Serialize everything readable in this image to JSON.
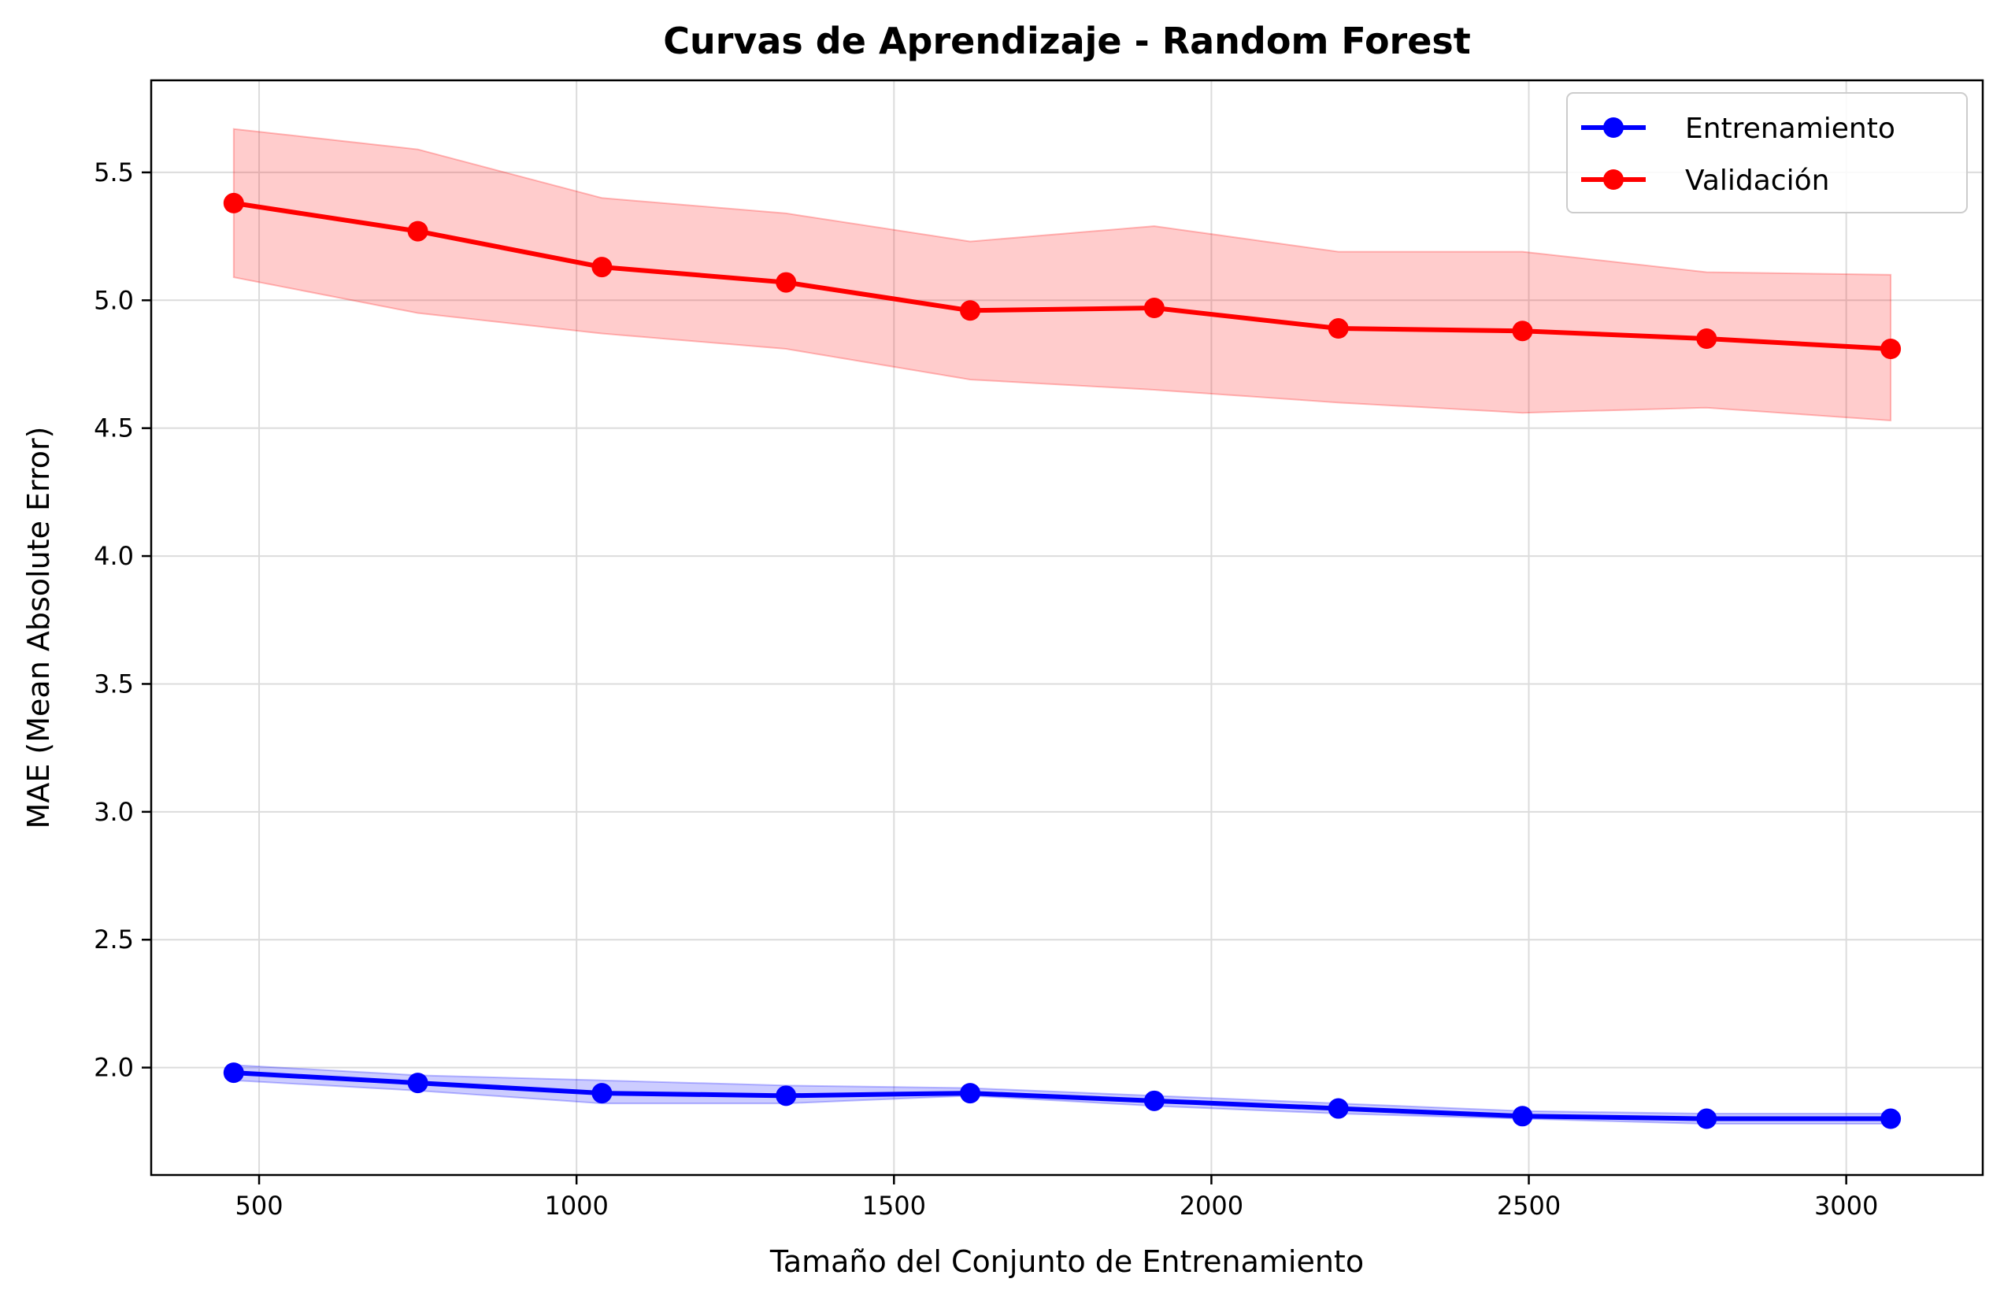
{
  "chart_data": {
    "type": "line",
    "title": "Curvas de Aprendizaje - Random Forest",
    "xlabel": "Tamaño del Conjunto de Entrenamiento",
    "ylabel": "MAE (Mean Absolute Error)",
    "xlim": [
      330,
      3215
    ],
    "ylim": [
      1.58,
      5.86
    ],
    "xticks": [
      500,
      1000,
      1500,
      2000,
      2500,
      3000
    ],
    "yticks": [
      2.0,
      2.5,
      3.0,
      3.5,
      4.0,
      4.5,
      5.0,
      5.5
    ],
    "xtick_labels": [
      "500",
      "1000",
      "1500",
      "2000",
      "2500",
      "3000"
    ],
    "ytick_labels": [
      "2.0",
      "2.5",
      "3.0",
      "3.5",
      "4.0",
      "4.5",
      "5.0",
      "5.5"
    ],
    "grid": true,
    "legend_position": "top-right",
    "x": [
      460,
      750,
      1040,
      1330,
      1620,
      1910,
      2200,
      2490,
      2780,
      3070
    ],
    "series": [
      {
        "name": "Entrenamiento",
        "color": "#0000ff",
        "band_color": "#0000ff",
        "values": [
          1.98,
          1.94,
          1.9,
          1.89,
          1.9,
          1.87,
          1.84,
          1.81,
          1.8,
          1.8
        ],
        "upper": [
          2.01,
          1.97,
          1.95,
          1.93,
          1.92,
          1.89,
          1.86,
          1.83,
          1.82,
          1.82
        ],
        "lower": [
          1.95,
          1.91,
          1.86,
          1.86,
          1.89,
          1.85,
          1.82,
          1.8,
          1.78,
          1.78
        ]
      },
      {
        "name": "Validación",
        "color": "#ff0000",
        "band_color": "#ff0000",
        "values": [
          5.38,
          5.27,
          5.13,
          5.07,
          4.96,
          4.97,
          4.89,
          4.88,
          4.85,
          4.81
        ],
        "upper": [
          5.67,
          5.59,
          5.4,
          5.34,
          5.23,
          5.29,
          5.19,
          5.19,
          5.11,
          5.1
        ],
        "lower": [
          5.09,
          4.95,
          4.87,
          4.81,
          4.69,
          4.65,
          4.6,
          4.56,
          4.58,
          4.53
        ]
      }
    ]
  }
}
